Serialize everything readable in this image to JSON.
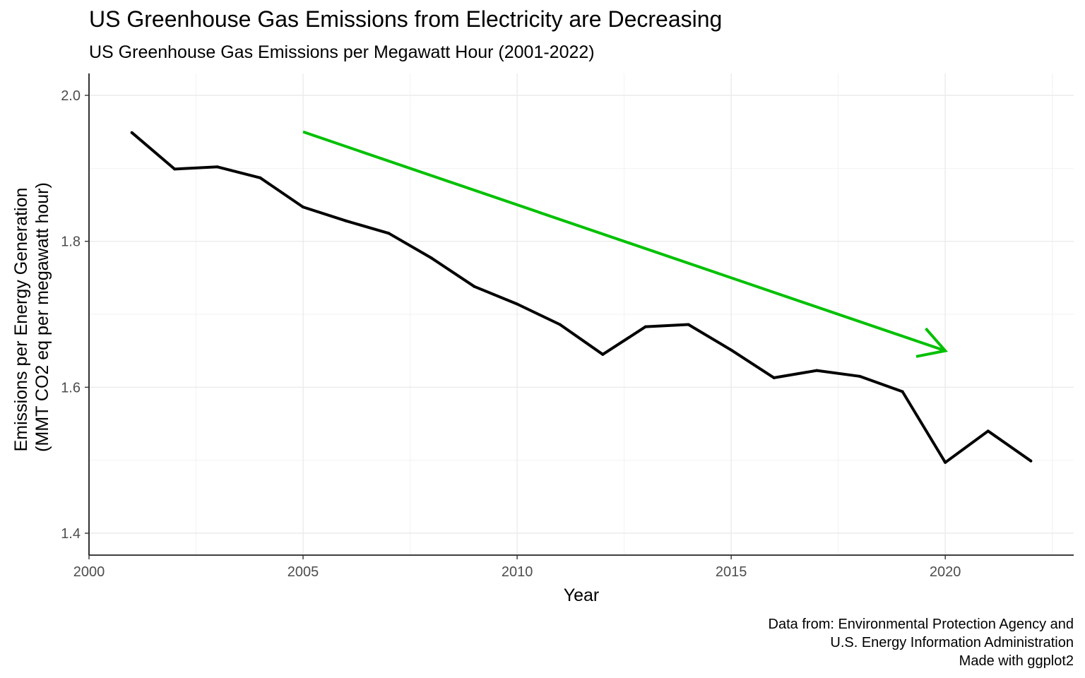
{
  "chart_data": {
    "type": "line",
    "title": "US Greenhouse Gas Emissions from Electricity are Decreasing",
    "subtitle": "US Greenhouse Gas Emissions per Megawatt Hour (2001-2022)",
    "xlabel": "Year",
    "ylabel_lines": [
      "Emissions per Energy Generation",
      "(MMT CO2 eq per megawatt hour)"
    ],
    "x": [
      2001,
      2002,
      2003,
      2004,
      2005,
      2006,
      2007,
      2008,
      2009,
      2010,
      2011,
      2012,
      2013,
      2014,
      2015,
      2016,
      2017,
      2018,
      2019,
      2020,
      2021,
      2022
    ],
    "series": [
      {
        "values": [
          1.949,
          1.899,
          1.902,
          1.887,
          1.847,
          1.828,
          1.811,
          1.777,
          1.738,
          1.714,
          1.686,
          1.645,
          1.683,
          1.686,
          1.651,
          1.613,
          1.623,
          1.615,
          1.594,
          1.497,
          1.54,
          1.499
        ],
        "color": "#000000"
      }
    ],
    "annotation_arrow": {
      "from": [
        2005,
        1.95
      ],
      "to": [
        2020,
        1.65
      ],
      "color": "#00c000"
    },
    "xlim": [
      2000,
      2023
    ],
    "ylim": [
      1.37,
      2.03
    ],
    "x_ticks": [
      "2000",
      "2005",
      "2010",
      "2015",
      "2020"
    ],
    "y_ticks": [
      "1.4",
      "1.6",
      "1.8",
      "2.0"
    ],
    "grid": true,
    "legend": "none",
    "caption_lines": [
      "Data from: Environmental Protection Agency and",
      "U.S. Energy Information Administration",
      "Made with ggplot2"
    ]
  }
}
